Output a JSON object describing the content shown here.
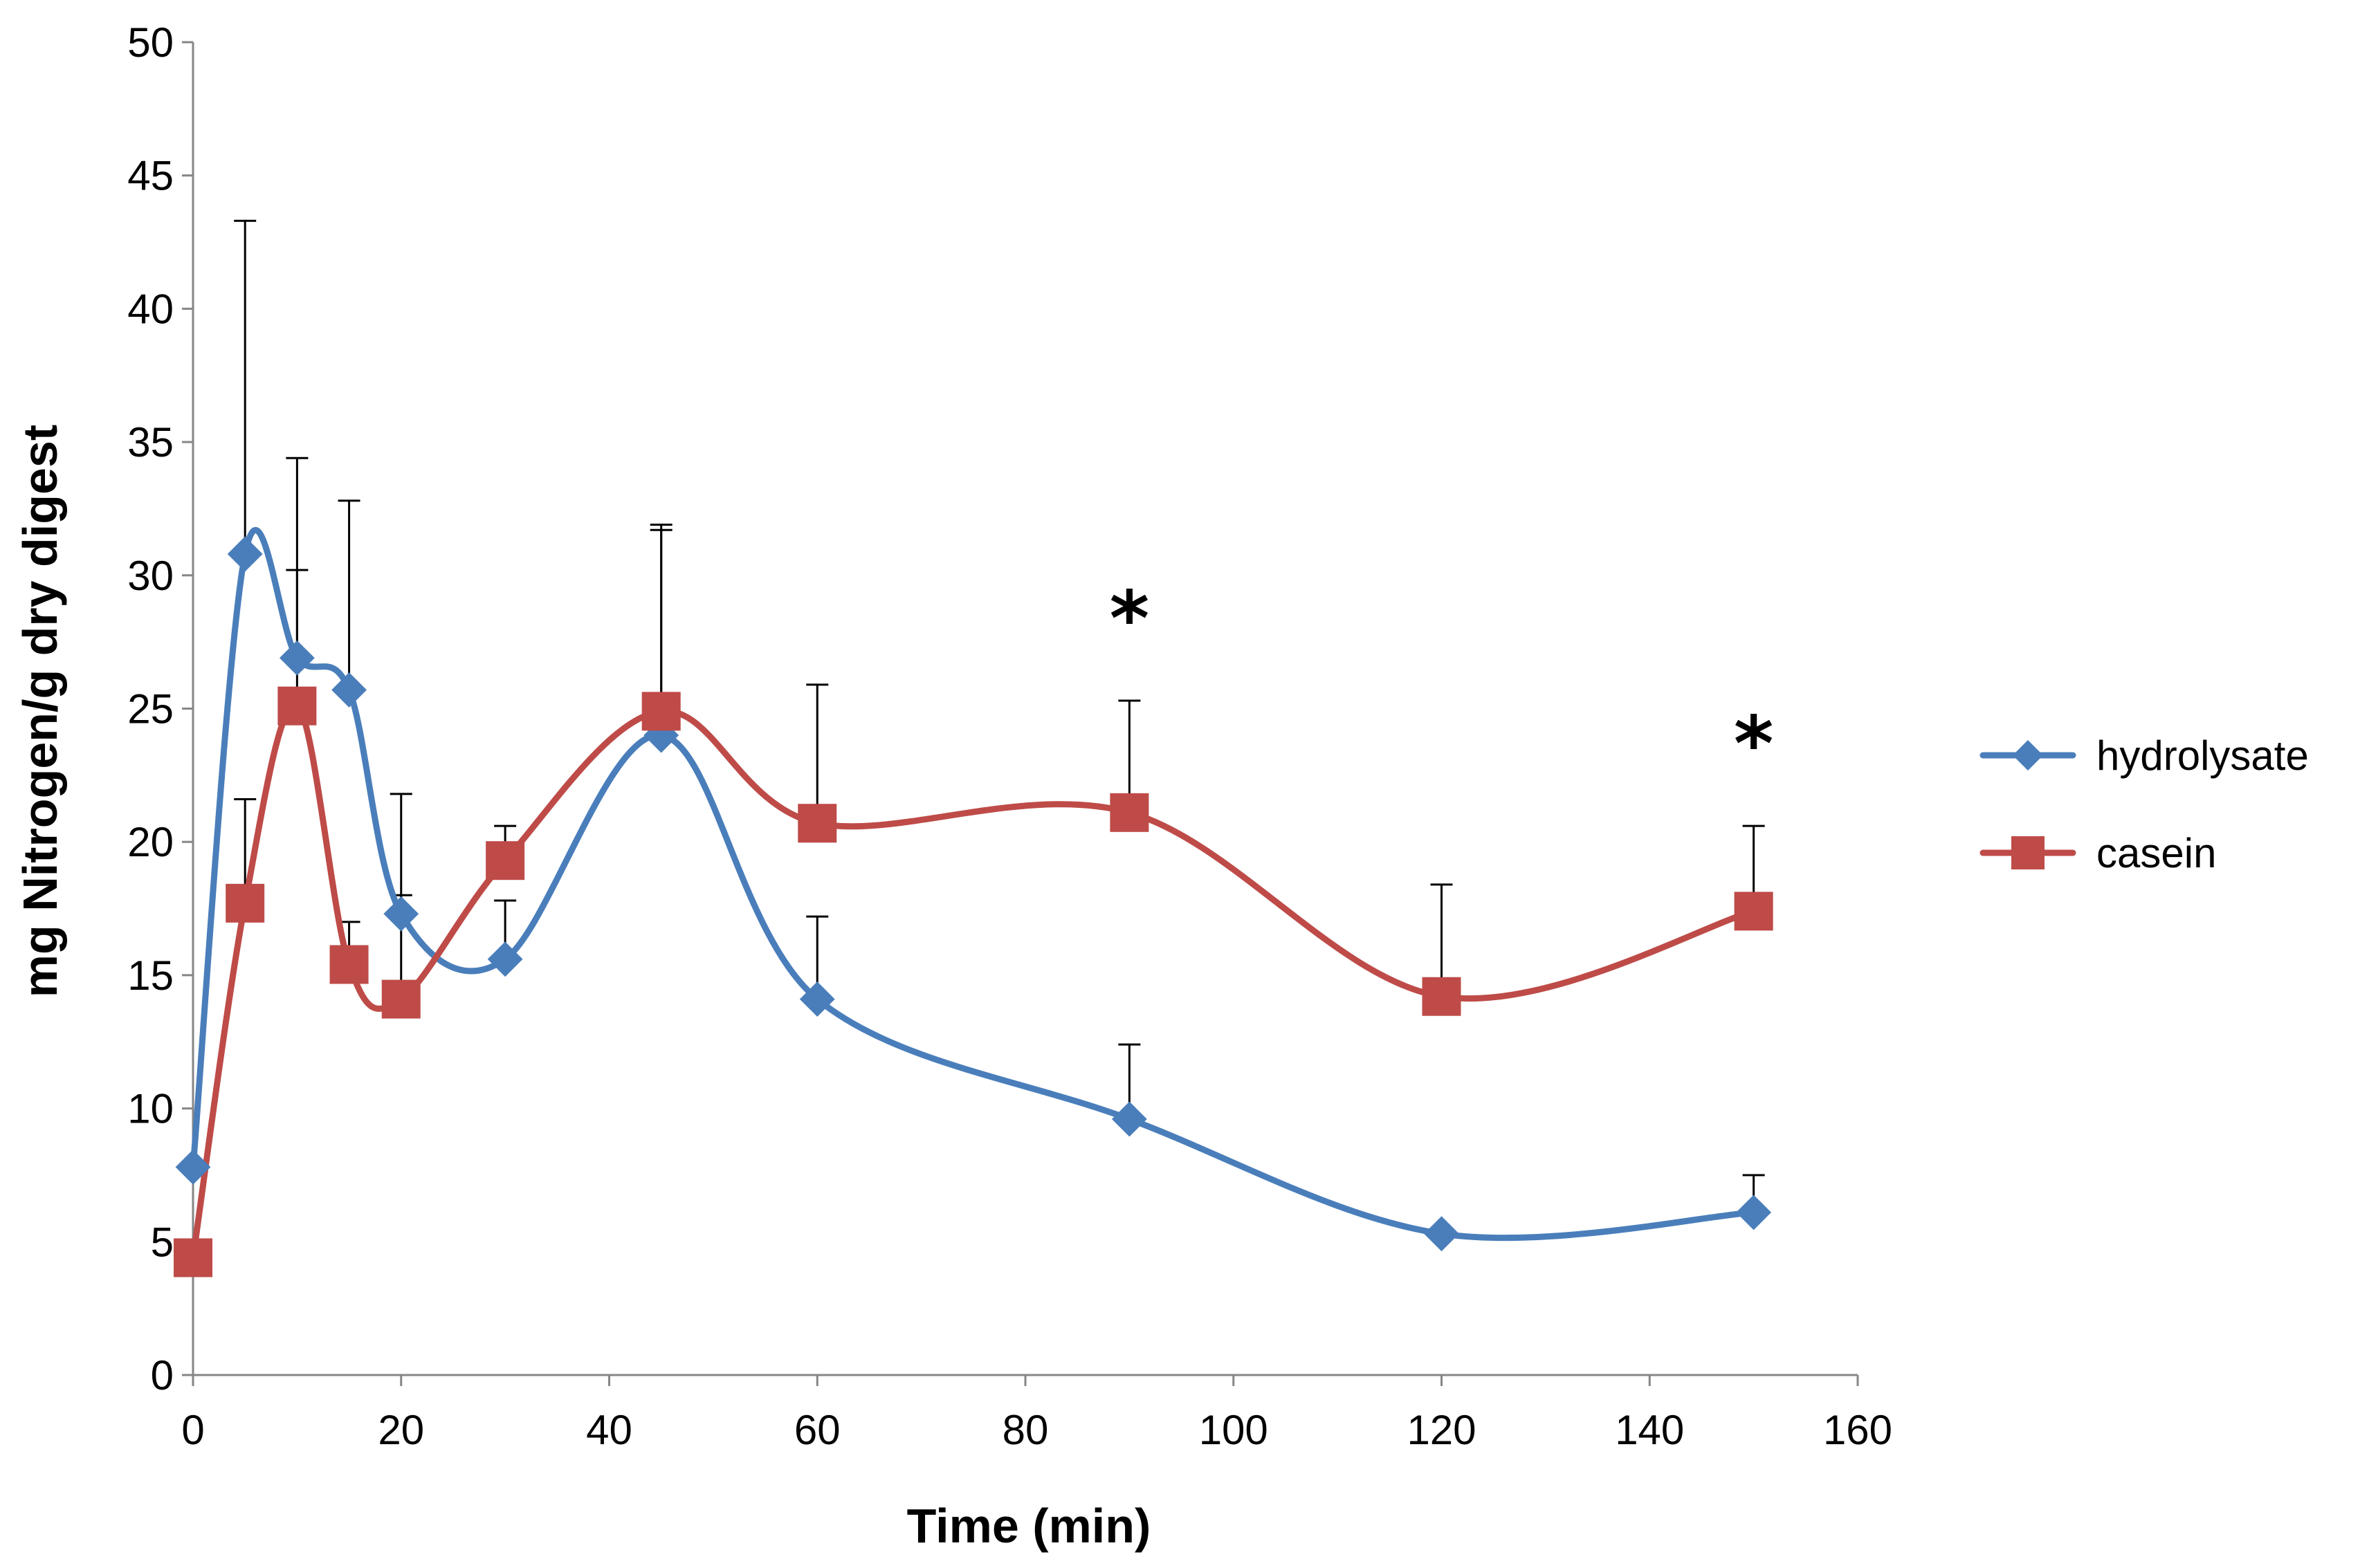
{
  "chart_data": {
    "type": "line",
    "title": "",
    "xlabel": "Time (min)",
    "ylabel": "mg Nitrogen/g dry digest",
    "xlim": [
      0,
      160
    ],
    "ylim": [
      0,
      50
    ],
    "xticks": [
      0,
      20,
      40,
      60,
      80,
      100,
      120,
      140,
      160
    ],
    "yticks": [
      0,
      5,
      10,
      15,
      20,
      25,
      30,
      35,
      40,
      45,
      50
    ],
    "grid": false,
    "legend_position": "right",
    "x": [
      0,
      5,
      10,
      15,
      20,
      30,
      45,
      60,
      90,
      120,
      150
    ],
    "series": [
      {
        "name": "hydrolysate",
        "color": "#4a7ebb",
        "marker": "diamond",
        "values": [
          7.8,
          30.8,
          26.9,
          25.7,
          17.3,
          15.6,
          24.0,
          14.1,
          9.6,
          5.3,
          6.1
        ],
        "error_upper": [
          7.8,
          43.3,
          34.4,
          32.8,
          21.8,
          17.8,
          31.7,
          17.2,
          12.4,
          5.3,
          7.5
        ]
      },
      {
        "name": "casein",
        "color": "#be4b48",
        "marker": "square",
        "values": [
          4.4,
          17.7,
          25.1,
          15.4,
          14.1,
          19.3,
          24.9,
          20.7,
          21.1,
          14.2,
          17.4
        ],
        "error_upper": [
          4.4,
          21.6,
          30.2,
          17.0,
          18.0,
          20.6,
          31.9,
          25.9,
          25.3,
          18.4,
          20.6
        ]
      }
    ],
    "annotations": [
      {
        "text": "*",
        "x": 90,
        "y": 29
      },
      {
        "text": "*",
        "x": 150,
        "y": 24.3
      }
    ]
  }
}
